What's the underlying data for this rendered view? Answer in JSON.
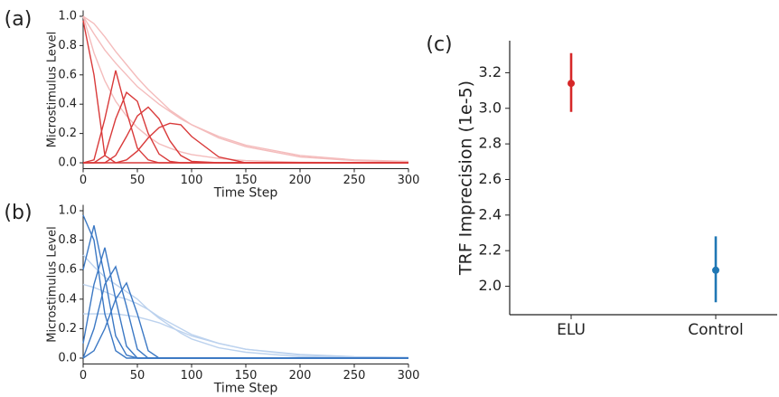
{
  "chart_data": [
    {
      "type": "line",
      "panel_label": "(a)",
      "xlabel": "Time Step",
      "ylabel": "Microstimulus Level",
      "x": [
        0,
        10,
        20,
        30,
        40,
        50,
        60,
        70,
        80,
        90,
        100,
        125,
        150,
        200,
        250,
        300
      ],
      "xlim": [
        0,
        300
      ],
      "ylim": [
        -0.04,
        1.04
      ],
      "xticks": [
        0,
        50,
        100,
        150,
        200,
        250,
        300
      ],
      "yticks": [
        {
          "value": 0,
          "label": "0.0"
        },
        0.2,
        0.4,
        0.6,
        0.8,
        {
          "value": 1,
          "label": "1.0"
        }
      ],
      "series": [
        {
          "color": "#f4bcbc",
          "values": [
            1,
            0.75,
            0.56,
            0.42,
            0.32,
            0.24,
            0.18,
            0.13,
            0.1,
            0.075,
            0.056,
            0.03,
            0.015,
            0.004,
            0.001,
            0
          ]
        },
        {
          "color": "#f4bcbc",
          "values": [
            1,
            0.88,
            0.77,
            0.68,
            0.6,
            0.52,
            0.46,
            0.4,
            0.35,
            0.3,
            0.26,
            0.18,
            0.12,
            0.05,
            0.02,
            0.01
          ]
        },
        {
          "color": "#f4bcbc",
          "values": [
            1,
            0.95,
            0.86,
            0.76,
            0.67,
            0.58,
            0.5,
            0.43,
            0.36,
            0.31,
            0.26,
            0.17,
            0.11,
            0.04,
            0.015,
            0.005
          ]
        },
        {
          "color": "#d93a3a",
          "values": [
            0.97,
            0.6,
            0.05,
            0,
            0,
            0,
            0,
            0,
            0,
            0,
            0,
            0,
            0,
            0,
            0,
            0
          ]
        },
        {
          "color": "#d93a3a",
          "values": [
            0,
            0.02,
            0.3,
            0.63,
            0.35,
            0.1,
            0.02,
            0,
            0,
            0,
            0,
            0,
            0,
            0,
            0,
            0
          ]
        },
        {
          "color": "#d93a3a",
          "values": [
            0,
            0,
            0.05,
            0.3,
            0.48,
            0.42,
            0.2,
            0.06,
            0.01,
            0,
            0,
            0,
            0,
            0,
            0,
            0
          ]
        },
        {
          "color": "#d93a3a",
          "values": [
            0,
            0,
            0,
            0.05,
            0.18,
            0.32,
            0.38,
            0.3,
            0.15,
            0.05,
            0.01,
            0,
            0,
            0,
            0,
            0
          ]
        },
        {
          "color": "#d93a3a",
          "values": [
            0,
            0,
            0,
            0,
            0.02,
            0.08,
            0.17,
            0.24,
            0.27,
            0.26,
            0.18,
            0.04,
            0,
            0,
            0,
            0
          ]
        }
      ]
    },
    {
      "type": "line",
      "panel_label": "(b)",
      "xlabel": "Time Step",
      "ylabel": "Microstimulus Level",
      "x": [
        0,
        10,
        20,
        30,
        40,
        50,
        60,
        70,
        80,
        90,
        100,
        125,
        150,
        200,
        250,
        300
      ],
      "xlim": [
        0,
        300
      ],
      "ylim": [
        -0.04,
        1.04
      ],
      "xticks": [
        0,
        50,
        100,
        150,
        200,
        250,
        300
      ],
      "yticks": [
        {
          "value": 0,
          "label": "0.0"
        },
        0.2,
        0.4,
        0.6,
        0.8,
        {
          "value": 1,
          "label": "1.0"
        }
      ],
      "series": [
        {
          "color": "#bcd2ee",
          "values": [
            0.7,
            0.62,
            0.55,
            0.5,
            0.45,
            0.4,
            0.33,
            0.27,
            0.22,
            0.17,
            0.13,
            0.07,
            0.04,
            0.01,
            0.003,
            0
          ]
        },
        {
          "color": "#bcd2ee",
          "values": [
            0.5,
            0.48,
            0.45,
            0.42,
            0.4,
            0.37,
            0.33,
            0.28,
            0.24,
            0.2,
            0.16,
            0.1,
            0.06,
            0.02,
            0.008,
            0.003
          ]
        },
        {
          "color": "#bcd2ee",
          "values": [
            0.3,
            0.3,
            0.3,
            0.3,
            0.29,
            0.28,
            0.26,
            0.24,
            0.21,
            0.18,
            0.15,
            0.1,
            0.06,
            0.025,
            0.01,
            0.005
          ]
        },
        {
          "color": "#3b78c4",
          "values": [
            0.97,
            0.8,
            0.3,
            0.05,
            0,
            0,
            0,
            0,
            0,
            0,
            0,
            0,
            0,
            0,
            0,
            0
          ]
        },
        {
          "color": "#3b78c4",
          "values": [
            0.6,
            0.9,
            0.55,
            0.15,
            0.02,
            0,
            0,
            0,
            0,
            0,
            0,
            0,
            0,
            0,
            0,
            0
          ]
        },
        {
          "color": "#3b78c4",
          "values": [
            0.1,
            0.5,
            0.75,
            0.4,
            0.08,
            0,
            0,
            0,
            0,
            0,
            0,
            0,
            0,
            0,
            0,
            0
          ]
        },
        {
          "color": "#3b78c4",
          "values": [
            0,
            0.2,
            0.5,
            0.62,
            0.35,
            0.06,
            0,
            0,
            0,
            0,
            0,
            0,
            0,
            0,
            0,
            0
          ]
        },
        {
          "color": "#3b78c4",
          "values": [
            0,
            0.05,
            0.2,
            0.4,
            0.51,
            0.3,
            0.05,
            0,
            0,
            0,
            0,
            0,
            0,
            0,
            0,
            0
          ]
        }
      ]
    },
    {
      "type": "point",
      "panel_label": "(c)",
      "ylabel": "TRF Imprecision (1e-5)",
      "categories": [
        "ELU",
        "Control"
      ],
      "values": [
        3.14,
        2.09
      ],
      "lower": [
        2.98,
        1.91
      ],
      "upper": [
        3.31,
        2.28
      ],
      "colors": [
        "#d62728",
        "#1f77b4"
      ],
      "ylim": [
        1.84,
        3.38
      ],
      "yticks": [
        {
          "value": 2,
          "label": "2.0"
        },
        2.2,
        2.4,
        2.6,
        2.8,
        {
          "value": 3,
          "label": "3.0"
        },
        3.2
      ]
    }
  ]
}
